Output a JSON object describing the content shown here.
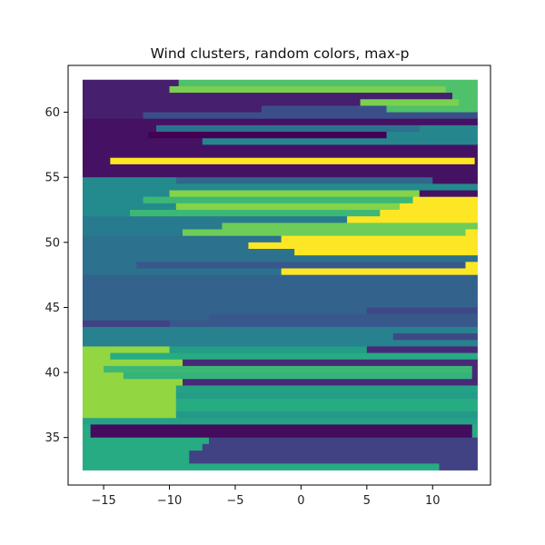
{
  "chart_data": {
    "type": "scatter",
    "title": "Wind clusters, random colors, max-p",
    "xlabel": "",
    "ylabel": "",
    "xlim": [
      -17.7,
      14.4
    ],
    "ylim": [
      31.35,
      63.6
    ],
    "x_ticks": [
      -15,
      -10,
      -5,
      0,
      5,
      10
    ],
    "x_tick_labels": [
      "−15",
      "−10",
      "−5",
      "0",
      "5",
      "10"
    ],
    "y_ticks": [
      35,
      40,
      45,
      50,
      55,
      60
    ],
    "y_tick_labels": [
      "35",
      "40",
      "45",
      "50",
      "55",
      "60"
    ],
    "grid": false,
    "legend": "none",
    "x_domain": [
      -16.6,
      13.4
    ],
    "y_domain": [
      32.5,
      62.5
    ],
    "colormap": "viridis",
    "background_color": "#ffffff",
    "cluster_bands": [
      {
        "y0": 62.0,
        "y1": 62.5,
        "segments": [
          [
            -16.6,
            -9.3,
            0.09
          ],
          [
            -9.3,
            13.4,
            0.72
          ]
        ]
      },
      {
        "y0": 61.5,
        "y1": 62.0,
        "segments": [
          [
            -16.6,
            -10.0,
            0.09
          ],
          [
            -10.0,
            11.0,
            0.8
          ],
          [
            11.0,
            13.4,
            0.72
          ]
        ]
      },
      {
        "y0": 61.0,
        "y1": 61.5,
        "segments": [
          [
            -16.6,
            11.5,
            0.09
          ],
          [
            11.5,
            13.4,
            0.72
          ]
        ]
      },
      {
        "y0": 60.5,
        "y1": 61.0,
        "segments": [
          [
            -16.6,
            4.5,
            0.09
          ],
          [
            4.5,
            12.0,
            0.8
          ],
          [
            12.0,
            13.4,
            0.72
          ]
        ]
      },
      {
        "y0": 60.0,
        "y1": 60.5,
        "segments": [
          [
            -16.6,
            -3.0,
            0.09
          ],
          [
            -3.0,
            6.5,
            0.24
          ],
          [
            6.5,
            13.4,
            0.72
          ]
        ]
      },
      {
        "y0": 59.5,
        "y1": 60.0,
        "segments": [
          [
            -16.6,
            -12.0,
            0.09
          ],
          [
            -12.0,
            13.4,
            0.24
          ]
        ]
      },
      {
        "y0": 59.0,
        "y1": 59.5,
        "segments": [
          [
            -16.6,
            13.4,
            0.05
          ]
        ]
      },
      {
        "y0": 58.5,
        "y1": 59.0,
        "segments": [
          [
            -16.6,
            -11.0,
            0.05
          ],
          [
            -11.0,
            9.0,
            0.38
          ],
          [
            9.0,
            13.4,
            0.46
          ]
        ]
      },
      {
        "y0": 58.0,
        "y1": 58.5,
        "segments": [
          [
            -16.6,
            -11.6,
            0.05
          ],
          [
            -11.6,
            6.5,
            0.0
          ],
          [
            6.5,
            13.4,
            0.46
          ]
        ]
      },
      {
        "y0": 57.5,
        "y1": 58.0,
        "segments": [
          [
            -16.6,
            -7.5,
            0.05
          ],
          [
            -7.5,
            13.4,
            0.46
          ]
        ]
      },
      {
        "y0": 57.0,
        "y1": 57.5,
        "segments": [
          [
            -16.6,
            13.4,
            0.05
          ]
        ]
      },
      {
        "y0": 56.5,
        "y1": 57.0,
        "segments": [
          [
            -16.6,
            13.4,
            0.05
          ]
        ]
      },
      {
        "y0": 56.0,
        "y1": 56.5,
        "segments": [
          [
            -16.6,
            -14.5,
            0.05
          ],
          [
            -14.5,
            13.2,
            1.0
          ],
          [
            13.2,
            13.4,
            0.05
          ]
        ]
      },
      {
        "y0": 55.5,
        "y1": 56.0,
        "segments": [
          [
            -16.6,
            13.4,
            0.05
          ]
        ]
      },
      {
        "y0": 55.0,
        "y1": 55.5,
        "segments": [
          [
            -16.6,
            13.4,
            0.05
          ]
        ]
      },
      {
        "y0": 54.5,
        "y1": 55.0,
        "segments": [
          [
            -16.6,
            -9.5,
            0.48
          ],
          [
            -9.5,
            10.0,
            0.34
          ],
          [
            10.0,
            13.4,
            0.05
          ]
        ]
      },
      {
        "y0": 54.0,
        "y1": 54.5,
        "segments": [
          [
            -16.6,
            13.4,
            0.48
          ]
        ]
      },
      {
        "y0": 53.5,
        "y1": 54.0,
        "segments": [
          [
            -16.6,
            -10.0,
            0.48
          ],
          [
            -10.0,
            9.0,
            0.82
          ],
          [
            9.0,
            13.4,
            0.05
          ]
        ]
      },
      {
        "y0": 53.0,
        "y1": 53.5,
        "segments": [
          [
            -16.6,
            -12.0,
            0.48
          ],
          [
            -12.0,
            8.5,
            0.68
          ],
          [
            8.5,
            13.4,
            1.0
          ]
        ]
      },
      {
        "y0": 52.5,
        "y1": 53.0,
        "segments": [
          [
            -16.6,
            -9.5,
            0.48
          ],
          [
            -9.5,
            7.5,
            0.82
          ],
          [
            7.5,
            13.4,
            1.0
          ]
        ]
      },
      {
        "y0": 52.0,
        "y1": 52.5,
        "segments": [
          [
            -16.6,
            -13.0,
            0.48
          ],
          [
            -13.0,
            6.0,
            0.68
          ],
          [
            6.0,
            13.4,
            1.0
          ]
        ]
      },
      {
        "y0": 51.5,
        "y1": 52.0,
        "segments": [
          [
            -16.6,
            3.5,
            0.42
          ],
          [
            3.5,
            13.4,
            1.0
          ]
        ]
      },
      {
        "y0": 51.0,
        "y1": 51.5,
        "segments": [
          [
            -16.6,
            -6.0,
            0.42
          ],
          [
            -6.0,
            13.4,
            0.78
          ]
        ]
      },
      {
        "y0": 50.5,
        "y1": 51.0,
        "segments": [
          [
            -16.6,
            -9.0,
            0.42
          ],
          [
            -9.0,
            12.5,
            0.78
          ],
          [
            12.5,
            13.4,
            1.0
          ]
        ]
      },
      {
        "y0": 50.0,
        "y1": 50.5,
        "segments": [
          [
            -16.6,
            -1.5,
            0.38
          ],
          [
            -1.5,
            13.4,
            1.0
          ]
        ]
      },
      {
        "y0": 49.5,
        "y1": 50.0,
        "segments": [
          [
            -16.6,
            -4.0,
            0.38
          ],
          [
            -4.0,
            13.4,
            1.0
          ]
        ]
      },
      {
        "y0": 49.0,
        "y1": 49.5,
        "segments": [
          [
            -16.6,
            -0.5,
            0.38
          ],
          [
            -0.5,
            13.4,
            1.0
          ]
        ]
      },
      {
        "y0": 48.5,
        "y1": 49.0,
        "segments": [
          [
            -16.6,
            13.4,
            0.38
          ]
        ]
      },
      {
        "y0": 48.0,
        "y1": 48.5,
        "segments": [
          [
            -16.6,
            -12.5,
            0.38
          ],
          [
            -12.5,
            12.5,
            0.28
          ],
          [
            12.5,
            13.4,
            1.0
          ]
        ]
      },
      {
        "y0": 47.5,
        "y1": 48.0,
        "segments": [
          [
            -16.6,
            -1.5,
            0.38
          ],
          [
            -1.5,
            13.4,
            1.0
          ]
        ]
      },
      {
        "y0": 47.0,
        "y1": 47.5,
        "segments": [
          [
            -16.6,
            13.4,
            0.32
          ]
        ]
      },
      {
        "y0": 46.5,
        "y1": 47.0,
        "segments": [
          [
            -16.6,
            13.4,
            0.32
          ]
        ]
      },
      {
        "y0": 46.0,
        "y1": 46.5,
        "segments": [
          [
            -16.6,
            13.4,
            0.32
          ]
        ]
      },
      {
        "y0": 45.5,
        "y1": 46.0,
        "segments": [
          [
            -16.6,
            13.4,
            0.32
          ]
        ]
      },
      {
        "y0": 45.0,
        "y1": 45.5,
        "segments": [
          [
            -16.6,
            13.4,
            0.32
          ]
        ]
      },
      {
        "y0": 44.5,
        "y1": 45.0,
        "segments": [
          [
            -16.6,
            5.0,
            0.32
          ],
          [
            5.0,
            13.4,
            0.22
          ]
        ]
      },
      {
        "y0": 44.0,
        "y1": 44.5,
        "segments": [
          [
            -16.6,
            -7.0,
            0.32
          ],
          [
            -7.0,
            13.4,
            0.28
          ]
        ]
      },
      {
        "y0": 43.5,
        "y1": 44.0,
        "segments": [
          [
            -16.6,
            -10.0,
            0.2
          ],
          [
            -10.0,
            13.4,
            0.28
          ]
        ]
      },
      {
        "y0": 43.0,
        "y1": 43.5,
        "segments": [
          [
            -16.6,
            13.4,
            0.44
          ]
        ]
      },
      {
        "y0": 42.5,
        "y1": 43.0,
        "segments": [
          [
            -16.6,
            -2.5,
            0.44
          ],
          [
            -2.5,
            7.0,
            0.44
          ],
          [
            7.0,
            13.4,
            0.22
          ]
        ]
      },
      {
        "y0": 42.0,
        "y1": 42.5,
        "segments": [
          [
            -16.6,
            13.4,
            0.44
          ]
        ]
      },
      {
        "y0": 41.5,
        "y1": 42.0,
        "segments": [
          [
            -16.6,
            -10.0,
            0.84
          ],
          [
            -10.0,
            5.0,
            0.56
          ],
          [
            5.0,
            13.4,
            0.12
          ]
        ]
      },
      {
        "y0": 41.0,
        "y1": 41.5,
        "segments": [
          [
            -16.6,
            -14.5,
            0.84
          ],
          [
            -14.5,
            13.4,
            0.62
          ]
        ]
      },
      {
        "y0": 40.5,
        "y1": 41.0,
        "segments": [
          [
            -16.6,
            -9.0,
            0.84
          ],
          [
            -9.0,
            13.4,
            0.12
          ]
        ]
      },
      {
        "y0": 40.0,
        "y1": 40.5,
        "segments": [
          [
            -16.6,
            -15.0,
            0.84
          ],
          [
            -15.0,
            13.0,
            0.68
          ],
          [
            13.0,
            13.4,
            0.12
          ]
        ]
      },
      {
        "y0": 39.5,
        "y1": 40.0,
        "segments": [
          [
            -16.6,
            -13.5,
            0.84
          ],
          [
            -13.5,
            13.0,
            0.66
          ],
          [
            13.0,
            13.4,
            0.12
          ]
        ]
      },
      {
        "y0": 39.0,
        "y1": 39.5,
        "segments": [
          [
            -16.6,
            -9.0,
            0.84
          ],
          [
            -9.0,
            13.4,
            0.12
          ]
        ]
      },
      {
        "y0": 38.5,
        "y1": 39.0,
        "segments": [
          [
            -16.6,
            -9.5,
            0.84
          ],
          [
            -9.5,
            13.4,
            0.58
          ]
        ]
      },
      {
        "y0": 38.0,
        "y1": 38.5,
        "segments": [
          [
            -16.6,
            -9.5,
            0.84
          ],
          [
            -9.5,
            13.4,
            0.56
          ]
        ]
      },
      {
        "y0": 37.5,
        "y1": 38.0,
        "segments": [
          [
            -16.6,
            -9.5,
            0.84
          ],
          [
            -9.5,
            13.4,
            0.62
          ]
        ]
      },
      {
        "y0": 37.0,
        "y1": 37.5,
        "segments": [
          [
            -16.6,
            -9.5,
            0.84
          ],
          [
            -9.5,
            13.4,
            0.62
          ]
        ]
      },
      {
        "y0": 36.5,
        "y1": 37.0,
        "segments": [
          [
            -16.6,
            -9.5,
            0.84
          ],
          [
            -9.5,
            13.4,
            0.54
          ]
        ]
      },
      {
        "y0": 36.0,
        "y1": 36.5,
        "segments": [
          [
            -16.6,
            13.4,
            0.58
          ]
        ]
      },
      {
        "y0": 35.5,
        "y1": 36.0,
        "segments": [
          [
            -16.6,
            -16.0,
            0.62
          ],
          [
            -16.0,
            13.0,
            0.03
          ],
          [
            13.0,
            13.4,
            0.62
          ]
        ]
      },
      {
        "y0": 35.0,
        "y1": 35.5,
        "segments": [
          [
            -16.6,
            -16.0,
            0.62
          ],
          [
            -16.0,
            13.0,
            0.03
          ],
          [
            13.0,
            13.4,
            0.62
          ]
        ]
      },
      {
        "y0": 34.5,
        "y1": 35.0,
        "segments": [
          [
            -16.6,
            -7.0,
            0.62
          ],
          [
            -7.0,
            13.4,
            0.2
          ]
        ]
      },
      {
        "y0": 34.0,
        "y1": 34.5,
        "segments": [
          [
            -16.6,
            -7.5,
            0.62
          ],
          [
            -7.5,
            13.4,
            0.2
          ]
        ]
      },
      {
        "y0": 33.5,
        "y1": 34.0,
        "segments": [
          [
            -16.6,
            -8.5,
            0.62
          ],
          [
            -8.5,
            13.4,
            0.2
          ]
        ]
      },
      {
        "y0": 33.0,
        "y1": 33.5,
        "segments": [
          [
            -16.6,
            -8.5,
            0.62
          ],
          [
            -8.5,
            13.4,
            0.2
          ]
        ]
      },
      {
        "y0": 32.5,
        "y1": 33.0,
        "segments": [
          [
            -16.6,
            10.5,
            0.62
          ],
          [
            10.5,
            13.4,
            0.2
          ]
        ]
      }
    ]
  }
}
